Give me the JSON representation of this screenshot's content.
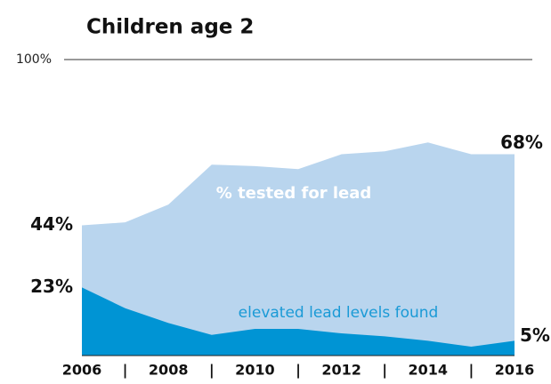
{
  "chart_data": {
    "type": "area",
    "title": "Children age 2",
    "x": [
      2006,
      2007,
      2008,
      2009,
      2010,
      2011,
      2012,
      2013,
      2014,
      2015,
      2016
    ],
    "xlim": [
      2006,
      2016
    ],
    "xticks": [
      2006,
      {
        "value": 2007,
        "label": "|"
      },
      2008,
      {
        "value": 2009,
        "label": "|"
      },
      2010,
      {
        "value": 2011,
        "label": "|"
      },
      2012,
      {
        "value": 2013,
        "label": "|"
      },
      2014,
      {
        "value": 2015,
        "label": "|"
      },
      2016
    ],
    "ylim": [
      0,
      100
    ],
    "yticks": [
      {
        "value": 100,
        "label": "100%"
      }
    ],
    "grid": true,
    "series": [
      {
        "name": "% tested for lead",
        "color": "#b9d5ee",
        "values": [
          44,
          45,
          51,
          64.5,
          64,
          63,
          68,
          69,
          72,
          68,
          68
        ],
        "value_labels": [
          "44%",
          null,
          null,
          null,
          null,
          null,
          null,
          null,
          null,
          null,
          "68%"
        ]
      },
      {
        "name": "elevated lead levels found",
        "color": "#0094d4",
        "values": [
          23,
          16,
          11,
          7,
          9,
          9,
          7.5,
          6.5,
          5,
          3,
          5
        ],
        "value_labels": [
          "23%",
          null,
          null,
          null,
          null,
          null,
          null,
          null,
          null,
          null,
          "5%"
        ]
      }
    ]
  }
}
